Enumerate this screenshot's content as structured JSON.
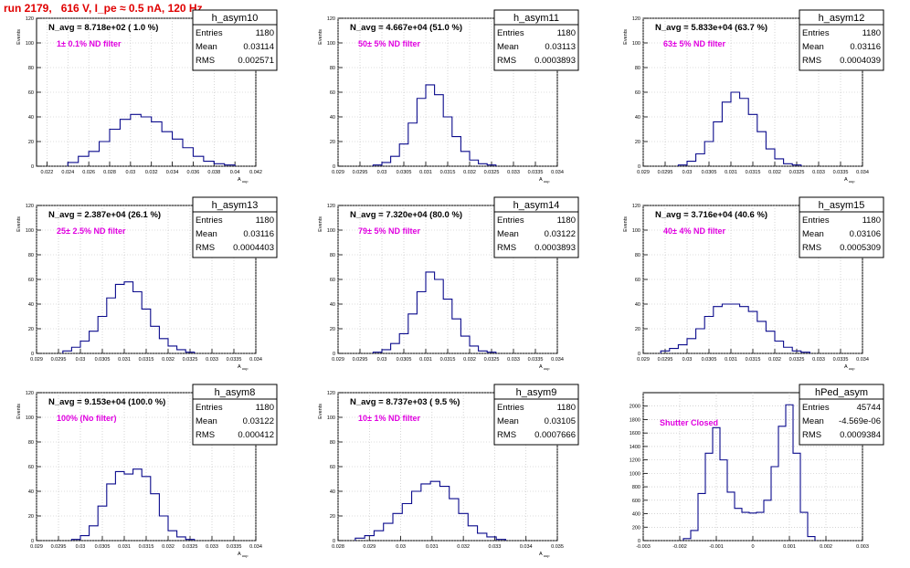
{
  "header": {
    "title": "run 2179,   616 V, I_pe ≈ 0.5 nA, 120 Hz"
  },
  "chart_data": [
    {
      "type": "histogram",
      "name": "h_asym10",
      "nav": "N_avg = 8.718e+02 ( 1.0 %)",
      "filter": "1± 0.1% ND filter",
      "stats": {
        "entries_label": "Entries",
        "entries": "1180",
        "mean_label": "Mean",
        "mean": "0.03114",
        "rms_label": "RMS",
        "rms": "0.002571"
      },
      "ylabel": "Events",
      "xlabel": "A_uup",
      "xlim": [
        0.021,
        0.042
      ],
      "ylim": [
        0,
        120
      ],
      "yticks": [
        0,
        20,
        40,
        60,
        80,
        100,
        120
      ],
      "xticks": [
        0.022,
        0.024,
        0.026,
        0.028,
        0.03,
        0.032,
        0.034,
        0.036,
        0.038,
        0.04,
        0.042
      ],
      "xtick_labels": [
        "0.022",
        "0.024",
        "0.026",
        "0.028",
        "0.03",
        "0.032",
        "0.034",
        "0.036",
        "0.038",
        "0.04",
        "0.042"
      ],
      "bins": [
        0.0245,
        0.0255,
        0.0265,
        0.0275,
        0.0285,
        0.0295,
        0.0305,
        0.0315,
        0.0325,
        0.0335,
        0.0345,
        0.0355,
        0.0365,
        0.0375,
        0.0385,
        0.0395
      ],
      "counts": [
        3,
        8,
        12,
        20,
        30,
        38,
        42,
        40,
        36,
        28,
        22,
        15,
        8,
        4,
        2,
        1
      ]
    },
    {
      "type": "histogram",
      "name": "h_asym11",
      "nav": "N_avg = 4.667e+04 (51.0 %)",
      "filter": "50± 5% ND filter",
      "stats": {
        "entries_label": "Entries",
        "entries": "1180",
        "mean_label": "Mean",
        "mean": "0.03113",
        "rms_label": "RMS",
        "rms": "0.0003893"
      },
      "ylabel": "Events",
      "xlabel": "A_uup",
      "xlim": [
        0.029,
        0.034
      ],
      "ylim": [
        0,
        120
      ],
      "yticks": [
        0,
        20,
        40,
        60,
        80,
        100,
        120
      ],
      "xticks": [
        0.029,
        0.0295,
        0.03,
        0.0305,
        0.031,
        0.0315,
        0.032,
        0.0325,
        0.033,
        0.0335,
        0.034
      ],
      "xtick_labels": [
        "0.029",
        "0.0295",
        "0.03",
        "0.0305",
        "0.031",
        "0.0315",
        "0.032",
        "0.0325",
        "0.033",
        "0.0335",
        "0.034"
      ],
      "bins": [
        0.0299,
        0.0301,
        0.0303,
        0.0305,
        0.0307,
        0.0309,
        0.0311,
        0.0313,
        0.0315,
        0.0317,
        0.0319,
        0.0321,
        0.0323,
        0.0325
      ],
      "counts": [
        1,
        3,
        8,
        18,
        35,
        55,
        66,
        58,
        40,
        24,
        12,
        5,
        2,
        1
      ]
    },
    {
      "type": "histogram",
      "name": "h_asym12",
      "nav": "N_avg = 5.833e+04 (63.7 %)",
      "filter": "63± 5% ND filter",
      "stats": {
        "entries_label": "Entries",
        "entries": "1180",
        "mean_label": "Mean",
        "mean": "0.03116",
        "rms_label": "RMS",
        "rms": "0.0004039"
      },
      "ylabel": "Events",
      "xlabel": "A_uup",
      "xlim": [
        0.029,
        0.034
      ],
      "ylim": [
        0,
        120
      ],
      "yticks": [
        0,
        20,
        40,
        60,
        80,
        100,
        120
      ],
      "xticks": [
        0.029,
        0.0295,
        0.03,
        0.0305,
        0.031,
        0.0315,
        0.032,
        0.0325,
        0.033,
        0.0335,
        0.034
      ],
      "xtick_labels": [
        "0.029",
        "0.0295",
        "0.03",
        "0.0305",
        "0.031",
        "0.0315",
        "0.032",
        "0.0325",
        "0.033",
        "0.0335",
        "0.034"
      ],
      "bins": [
        0.0299,
        0.0301,
        0.0303,
        0.0305,
        0.0307,
        0.0309,
        0.0311,
        0.0313,
        0.0315,
        0.0317,
        0.0319,
        0.0321,
        0.0323,
        0.0325
      ],
      "counts": [
        1,
        4,
        10,
        20,
        36,
        52,
        60,
        55,
        42,
        28,
        14,
        6,
        2,
        1
      ]
    },
    {
      "type": "histogram",
      "name": "h_asym13",
      "nav": "N_avg = 2.387e+04 (26.1 %)",
      "filter": "25± 2.5% ND filter",
      "stats": {
        "entries_label": "Entries",
        "entries": "1180",
        "mean_label": "Mean",
        "mean": "0.03116",
        "rms_label": "RMS",
        "rms": "0.0004403"
      },
      "ylabel": "Events",
      "xlabel": "A_uup",
      "xlim": [
        0.029,
        0.034
      ],
      "ylim": [
        0,
        120
      ],
      "yticks": [
        0,
        20,
        40,
        60,
        80,
        100,
        120
      ],
      "xticks": [
        0.029,
        0.0295,
        0.03,
        0.0305,
        0.031,
        0.0315,
        0.032,
        0.0325,
        0.033,
        0.0335,
        0.034
      ],
      "xtick_labels": [
        "0.029",
        "0.0295",
        "0.03",
        "0.0305",
        "0.031",
        "0.0315",
        "0.032",
        "0.0325",
        "0.033",
        "0.0335",
        "0.034"
      ],
      "bins": [
        0.0297,
        0.0299,
        0.0301,
        0.0303,
        0.0305,
        0.0307,
        0.0309,
        0.0311,
        0.0313,
        0.0315,
        0.0317,
        0.0319,
        0.0321,
        0.0323,
        0.0325
      ],
      "counts": [
        2,
        5,
        10,
        18,
        30,
        45,
        56,
        58,
        50,
        36,
        22,
        12,
        6,
        3,
        1
      ]
    },
    {
      "type": "histogram",
      "name": "h_asym14",
      "nav": "N_avg = 7.320e+04 (80.0 %)",
      "filter": "79± 5% ND filter",
      "stats": {
        "entries_label": "Entries",
        "entries": "1180",
        "mean_label": "Mean",
        "mean": "0.03122",
        "rms_label": "RMS",
        "rms": "0.0003893"
      },
      "ylabel": "Events",
      "xlabel": "A_uup",
      "xlim": [
        0.029,
        0.034
      ],
      "ylim": [
        0,
        120
      ],
      "yticks": [
        0,
        20,
        40,
        60,
        80,
        100,
        120
      ],
      "xticks": [
        0.029,
        0.0295,
        0.03,
        0.0305,
        0.031,
        0.0315,
        0.032,
        0.0325,
        0.033,
        0.0335,
        0.034
      ],
      "xtick_labels": [
        "0.029",
        "0.0295",
        "0.03",
        "0.0305",
        "0.031",
        "0.0315",
        "0.032",
        "0.0325",
        "0.033",
        "0.0335",
        "0.034"
      ],
      "bins": [
        0.0299,
        0.0301,
        0.0303,
        0.0305,
        0.0307,
        0.0309,
        0.0311,
        0.0313,
        0.0315,
        0.0317,
        0.0319,
        0.0321,
        0.0323,
        0.0325
      ],
      "counts": [
        1,
        3,
        8,
        16,
        32,
        50,
        66,
        60,
        44,
        28,
        14,
        6,
        2,
        1
      ]
    },
    {
      "type": "histogram",
      "name": "h_asym15",
      "nav": "N_avg = 3.716e+04 (40.6 %)",
      "filter": "40± 4% ND filter",
      "stats": {
        "entries_label": "Entries",
        "entries": "1180",
        "mean_label": "Mean",
        "mean": "0.03106",
        "rms_label": "RMS",
        "rms": "0.0005309"
      },
      "ylabel": "Events",
      "xlabel": "A_uup",
      "xlim": [
        0.029,
        0.034
      ],
      "ylim": [
        0,
        120
      ],
      "yticks": [
        0,
        20,
        40,
        60,
        80,
        100,
        120
      ],
      "xticks": [
        0.029,
        0.0295,
        0.03,
        0.0305,
        0.031,
        0.0315,
        0.032,
        0.0325,
        0.033,
        0.0335,
        0.034
      ],
      "xtick_labels": [
        "0.029",
        "0.0295",
        "0.03",
        "0.0305",
        "0.031",
        "0.0315",
        "0.032",
        "0.0325",
        "0.033",
        "0.0335",
        "0.034"
      ],
      "bins": [
        0.0295,
        0.0297,
        0.0299,
        0.0301,
        0.0303,
        0.0305,
        0.0307,
        0.0309,
        0.0311,
        0.0313,
        0.0315,
        0.0317,
        0.0319,
        0.0321,
        0.0323,
        0.0325,
        0.0327
      ],
      "counts": [
        2,
        4,
        7,
        12,
        20,
        30,
        38,
        40,
        40,
        38,
        34,
        26,
        18,
        10,
        5,
        2,
        1
      ]
    },
    {
      "type": "histogram",
      "name": "h_asym8",
      "nav": "N_avg = 9.153e+04 (100.0 %)",
      "filter": "100% (No filter)",
      "stats": {
        "entries_label": "Entries",
        "entries": "1180",
        "mean_label": "Mean",
        "mean": "0.03122",
        "rms_label": "RMS",
        "rms": "0.000412"
      },
      "ylabel": "Events",
      "xlabel": "A_uup",
      "xlim": [
        0.029,
        0.034
      ],
      "ylim": [
        0,
        120
      ],
      "yticks": [
        0,
        20,
        40,
        60,
        80,
        100,
        120
      ],
      "xticks": [
        0.029,
        0.0295,
        0.03,
        0.0305,
        0.031,
        0.0315,
        0.032,
        0.0325,
        0.033,
        0.0335,
        0.034
      ],
      "xtick_labels": [
        "0.029",
        "0.0295",
        "0.03",
        "0.0305",
        "0.031",
        "0.0315",
        "0.032",
        "0.0325",
        "0.033",
        "0.0335",
        "0.034"
      ],
      "bins": [
        0.0299,
        0.0301,
        0.0303,
        0.0305,
        0.0307,
        0.0309,
        0.0311,
        0.0313,
        0.0315,
        0.0317,
        0.0319,
        0.0321,
        0.0323,
        0.0325
      ],
      "counts": [
        1,
        4,
        12,
        28,
        46,
        56,
        54,
        58,
        52,
        38,
        20,
        8,
        3,
        1
      ]
    },
    {
      "type": "histogram",
      "name": "h_asym9",
      "nav": "N_avg = 8.737e+03 ( 9.5 %)",
      "filter": "10± 1% ND filter",
      "stats": {
        "entries_label": "Entries",
        "entries": "1180",
        "mean_label": "Mean",
        "mean": "0.03105",
        "rms_label": "RMS",
        "rms": "0.0007666"
      },
      "ylabel": "Events",
      "xlabel": "A_uup",
      "xlim": [
        0.028,
        0.035
      ],
      "ylim": [
        0,
        120
      ],
      "yticks": [
        0,
        20,
        40,
        60,
        80,
        100,
        120
      ],
      "xticks": [
        0.028,
        0.029,
        0.03,
        0.031,
        0.032,
        0.033,
        0.034,
        0.035
      ],
      "xtick_labels": [
        "0.028",
        "0.029",
        "0.03",
        "0.031",
        "0.032",
        "0.033",
        "0.034",
        "0.035"
      ],
      "bins": [
        0.0287,
        0.029,
        0.0293,
        0.0296,
        0.0299,
        0.0302,
        0.0305,
        0.0308,
        0.0311,
        0.0314,
        0.0317,
        0.032,
        0.0323,
        0.0326,
        0.0329,
        0.0332
      ],
      "counts": [
        2,
        4,
        8,
        14,
        22,
        30,
        40,
        46,
        48,
        44,
        34,
        22,
        12,
        6,
        3,
        1
      ]
    },
    {
      "type": "histogram",
      "name": "hPed_asym",
      "nav": "",
      "filter": "Shutter Closed",
      "stats": {
        "entries_label": "Entries",
        "entries": "45744",
        "mean_label": "Mean",
        "mean": "-4.569e-06",
        "rms_label": "RMS",
        "rms": "0.0009384"
      },
      "ylabel": "",
      "xlabel": "",
      "xlim": [
        -0.003,
        0.003
      ],
      "ylim": [
        0,
        2200
      ],
      "yticks": [
        0,
        200,
        400,
        600,
        800,
        1000,
        1200,
        1400,
        1600,
        1800,
        2000
      ],
      "xticks": [
        -0.003,
        -0.002,
        -0.001,
        0,
        0.001,
        0.002,
        0.003
      ],
      "xtick_labels": [
        "-0.003",
        "-0.002",
        "-0.001",
        "0",
        "0.001",
        "0.002",
        "0.003"
      ],
      "bins": [
        -0.0018,
        -0.0016,
        -0.0014,
        -0.0012,
        -0.001,
        -0.0008,
        -0.0006,
        -0.0004,
        -0.0002,
        0.0,
        0.0002,
        0.0004,
        0.0006,
        0.0008,
        0.001,
        0.0012,
        0.0014,
        0.0016
      ],
      "counts": [
        30,
        150,
        700,
        1300,
        1680,
        1200,
        720,
        480,
        420,
        410,
        420,
        600,
        1100,
        1700,
        2020,
        1300,
        420,
        60
      ]
    }
  ]
}
